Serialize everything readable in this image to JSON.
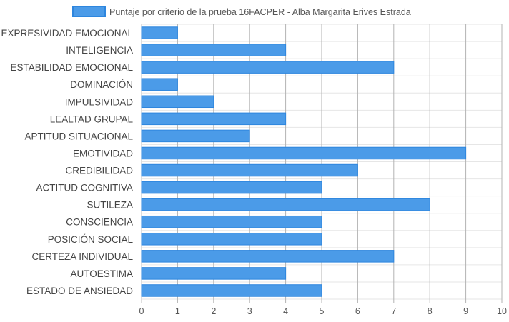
{
  "chart_data": {
    "type": "bar",
    "orientation": "horizontal",
    "legend_position": "top",
    "grid": true,
    "xlim": [
      0,
      10
    ],
    "x_ticks": [
      "0",
      "1",
      "2",
      "3",
      "4",
      "5",
      "6",
      "7",
      "8",
      "9",
      "10"
    ],
    "categories": [
      "EXPRESIVIDAD EMOCIONAL",
      "INTELIGENCIA",
      "ESTABILIDAD EMOCIONAL",
      "DOMINACIÓN",
      "IMPULSIVIDAD",
      "LEALTAD GRUPAL",
      "APTITUD SITUACIONAL",
      "EMOTIVIDAD",
      "CREDIBILIDAD",
      "ACTITUD COGNITIVA",
      "SUTILEZA",
      "CONSCIENCIA",
      "POSICIÓN SOCIAL",
      "CERTEZA INDIVIDUAL",
      "AUTOESTIMA",
      "ESTADO DE ANSIEDAD"
    ],
    "series": [
      {
        "name": "Puntaje por criterio de la prueba 16FACPER - Alba Margarita Erives Estrada",
        "color": "#4b9be8",
        "border_color": "#2e86de",
        "values": [
          1,
          4,
          7,
          1,
          2,
          4,
          3,
          9,
          6,
          5,
          8,
          5,
          5,
          7,
          4,
          5
        ]
      }
    ]
  }
}
